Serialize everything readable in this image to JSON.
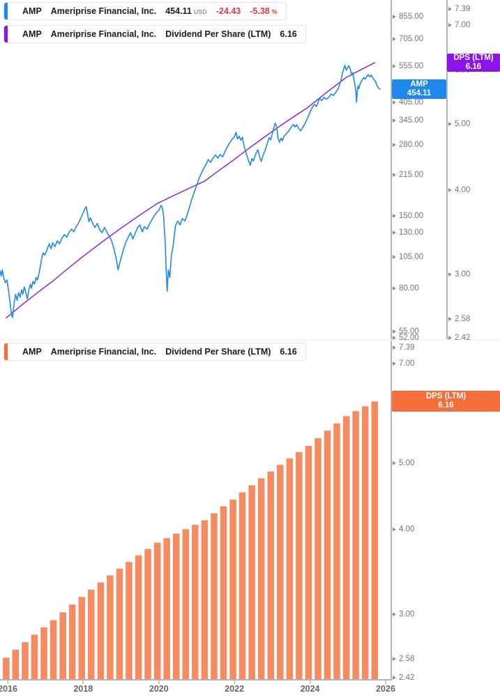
{
  "legends": {
    "price": {
      "ticker": "AMP",
      "name": "Ameriprise Financial, Inc.",
      "price": "454.11",
      "currency": "USD",
      "change": "-24.43",
      "change_pct": "-5.38",
      "pct": "%"
    },
    "dps_overlay": {
      "ticker": "AMP",
      "name": "Ameriprise Financial, Inc.",
      "metric": "Dividend Per Share (LTM)",
      "value": "6.16"
    },
    "dps_bottom": {
      "ticker": "AMP",
      "name": "Ameriprise Financial, Inc.",
      "metric": "Dividend Per Share (LTM)",
      "value": "6.16"
    }
  },
  "badges": {
    "amp": {
      "line1": "AMP",
      "line2": "454.11",
      "color": "#1e88eb"
    },
    "dps_top": {
      "line1": "DPS (LTM)",
      "line2": "6.16",
      "color": "#8c14eb"
    },
    "dps_bottom": {
      "line1": "DPS (LTM)",
      "line2": "6.16",
      "color": "#f46e3c"
    }
  },
  "colors": {
    "price_line": "#1e88eb",
    "dps_line": "#8c14eb",
    "dps_bar": "#f68a60",
    "dps_badge": "#f46e3c",
    "negative_red": "#e23b3e",
    "axis_line": "#b4b4b4",
    "axis_text": "#757575"
  },
  "chart_data": [
    {
      "panel": "top",
      "type": "line",
      "title": "AMP price with Dividend Per Share (LTM) overlay",
      "x_ticks": [
        2016,
        2018,
        2020,
        2022,
        2024,
        2026
      ],
      "price_axis": {
        "scale": "log",
        "ticks": [
          855,
          705,
          555,
          405,
          345,
          280,
          215,
          150,
          130,
          105,
          80,
          55,
          52
        ],
        "last": 454.11
      },
      "dps_axis": {
        "scale": "log",
        "ticks": [
          7.39,
          7,
          6,
          5,
          4,
          3,
          2.58,
          2.42
        ],
        "last": 6.16
      },
      "series": [
        {
          "name": "AMP",
          "label": "454.11 USD",
          "color": "#1e88eb",
          "points": [
            [
              2015.8,
              93
            ],
            [
              2015.83,
              89
            ],
            [
              2015.86,
              94
            ],
            [
              2015.9,
              87
            ],
            [
              2015.94,
              84
            ],
            [
              2015.98,
              86
            ],
            [
              2016.02,
              79
            ],
            [
              2016.06,
              71
            ],
            [
              2016.1,
              64
            ],
            [
              2016.13,
              62
            ],
            [
              2016.17,
              70
            ],
            [
              2016.21,
              76
            ],
            [
              2016.25,
              72
            ],
            [
              2016.29,
              77
            ],
            [
              2016.33,
              74
            ],
            [
              2016.37,
              79
            ],
            [
              2016.4,
              76
            ],
            [
              2016.44,
              81
            ],
            [
              2016.48,
              77
            ],
            [
              2016.52,
              73
            ],
            [
              2016.56,
              79
            ],
            [
              2016.6,
              83
            ],
            [
              2016.63,
              80
            ],
            [
              2016.67,
              85
            ],
            [
              2016.71,
              83
            ],
            [
              2016.75,
              88
            ],
            [
              2016.79,
              86
            ],
            [
              2016.83,
              91
            ],
            [
              2016.87,
              98
            ],
            [
              2016.9,
              104
            ],
            [
              2016.94,
              109
            ],
            [
              2016.98,
              107
            ],
            [
              2017.02,
              110
            ],
            [
              2017.06,
              114
            ],
            [
              2017.1,
              118
            ],
            [
              2017.15,
              113
            ],
            [
              2017.19,
              119
            ],
            [
              2017.25,
              115
            ],
            [
              2017.31,
              121
            ],
            [
              2017.37,
              118
            ],
            [
              2017.44,
              124
            ],
            [
              2017.5,
              128
            ],
            [
              2017.56,
              125
            ],
            [
              2017.62,
              130
            ],
            [
              2017.69,
              134
            ],
            [
              2017.75,
              131
            ],
            [
              2017.81,
              137
            ],
            [
              2017.87,
              141
            ],
            [
              2017.94,
              148
            ],
            [
              2018.0,
              155
            ],
            [
              2018.04,
              160
            ],
            [
              2018.08,
              163
            ],
            [
              2018.12,
              151
            ],
            [
              2018.15,
              143
            ],
            [
              2018.19,
              148
            ],
            [
              2018.25,
              141
            ],
            [
              2018.31,
              136
            ],
            [
              2018.37,
              141
            ],
            [
              2018.44,
              133
            ],
            [
              2018.5,
              130
            ],
            [
              2018.56,
              136
            ],
            [
              2018.62,
              131
            ],
            [
              2018.69,
              126
            ],
            [
              2018.75,
              121
            ],
            [
              2018.81,
              113
            ],
            [
              2018.87,
              104
            ],
            [
              2018.92,
              94
            ],
            [
              2018.96,
              99
            ],
            [
              2019.0,
              104
            ],
            [
              2019.06,
              112
            ],
            [
              2019.12,
              119
            ],
            [
              2019.19,
              125
            ],
            [
              2019.25,
              130
            ],
            [
              2019.31,
              123
            ],
            [
              2019.37,
              129
            ],
            [
              2019.44,
              136
            ],
            [
              2019.5,
              139
            ],
            [
              2019.56,
              131
            ],
            [
              2019.62,
              137
            ],
            [
              2019.69,
              134
            ],
            [
              2019.75,
              140
            ],
            [
              2019.81,
              145
            ],
            [
              2019.87,
              150
            ],
            [
              2019.94,
              155
            ],
            [
              2020.0,
              158
            ],
            [
              2020.06,
              165
            ],
            [
              2020.1,
              160
            ],
            [
              2020.13,
              148
            ],
            [
              2020.17,
              118
            ],
            [
              2020.19,
              96
            ],
            [
              2020.22,
              78
            ],
            [
              2020.25,
              94
            ],
            [
              2020.29,
              88
            ],
            [
              2020.33,
              106
            ],
            [
              2020.37,
              114
            ],
            [
              2020.44,
              138
            ],
            [
              2020.5,
              144
            ],
            [
              2020.56,
              139
            ],
            [
              2020.62,
              147
            ],
            [
              2020.69,
              144
            ],
            [
              2020.75,
              152
            ],
            [
              2020.81,
              162
            ],
            [
              2020.87,
              174
            ],
            [
              2020.94,
              186
            ],
            [
              2021.0,
              196
            ],
            [
              2021.06,
              208
            ],
            [
              2021.12,
              218
            ],
            [
              2021.19,
              228
            ],
            [
              2021.25,
              236
            ],
            [
              2021.31,
              246
            ],
            [
              2021.37,
              240
            ],
            [
              2021.44,
              250
            ],
            [
              2021.5,
              256
            ],
            [
              2021.56,
              249
            ],
            [
              2021.62,
              257
            ],
            [
              2021.69,
              252
            ],
            [
              2021.75,
              264
            ],
            [
              2021.81,
              274
            ],
            [
              2021.87,
              284
            ],
            [
              2021.94,
              294
            ],
            [
              2022.0,
              300
            ],
            [
              2022.04,
              312
            ],
            [
              2022.08,
              294
            ],
            [
              2022.12,
              302
            ],
            [
              2022.17,
              291
            ],
            [
              2022.21,
              299
            ],
            [
              2022.25,
              278
            ],
            [
              2022.31,
              260
            ],
            [
              2022.37,
              244
            ],
            [
              2022.42,
              234
            ],
            [
              2022.46,
              248
            ],
            [
              2022.5,
              243
            ],
            [
              2022.56,
              258
            ],
            [
              2022.62,
              268
            ],
            [
              2022.67,
              251
            ],
            [
              2022.71,
              242
            ],
            [
              2022.75,
              254
            ],
            [
              2022.81,
              266
            ],
            [
              2022.87,
              284
            ],
            [
              2022.92,
              298
            ],
            [
              2022.96,
              292
            ],
            [
              2023.0,
              308
            ],
            [
              2023.04,
              324
            ],
            [
              2023.08,
              338
            ],
            [
              2023.12,
              326
            ],
            [
              2023.15,
              298
            ],
            [
              2023.19,
              286
            ],
            [
              2023.23,
              296
            ],
            [
              2023.27,
              290
            ],
            [
              2023.31,
              301
            ],
            [
              2023.37,
              308
            ],
            [
              2023.44,
              316
            ],
            [
              2023.5,
              326
            ],
            [
              2023.56,
              334
            ],
            [
              2023.6,
              327
            ],
            [
              2023.65,
              333
            ],
            [
              2023.69,
              324
            ],
            [
              2023.75,
              316
            ],
            [
              2023.81,
              326
            ],
            [
              2023.87,
              338
            ],
            [
              2023.94,
              354
            ],
            [
              2024.0,
              372
            ],
            [
              2024.06,
              388
            ],
            [
              2024.12,
              398
            ],
            [
              2024.17,
              391
            ],
            [
              2024.21,
              404
            ],
            [
              2024.25,
              420
            ],
            [
              2024.31,
              411
            ],
            [
              2024.37,
              423
            ],
            [
              2024.44,
              416
            ],
            [
              2024.5,
              424
            ],
            [
              2024.56,
              436
            ],
            [
              2024.62,
              430
            ],
            [
              2024.69,
              444
            ],
            [
              2024.75,
              458
            ],
            [
              2024.81,
              486
            ],
            [
              2024.85,
              516
            ],
            [
              2024.88,
              536
            ],
            [
              2024.92,
              560
            ],
            [
              2024.94,
              546
            ],
            [
              2024.96,
              536
            ],
            [
              2025.0,
              550
            ],
            [
              2025.02,
              558
            ],
            [
              2025.06,
              543
            ],
            [
              2025.08,
              528
            ],
            [
              2025.1,
              514
            ],
            [
              2025.13,
              526
            ],
            [
              2025.15,
              506
            ],
            [
              2025.17,
              488
            ],
            [
              2025.19,
              468
            ],
            [
              2025.21,
              446
            ],
            [
              2025.23,
              405
            ],
            [
              2025.25,
              450
            ],
            [
              2025.27,
              468
            ],
            [
              2025.29,
              456
            ],
            [
              2025.33,
              478
            ],
            [
              2025.37,
              490
            ],
            [
              2025.42,
              503
            ],
            [
              2025.46,
              496
            ],
            [
              2025.5,
              508
            ],
            [
              2025.54,
              516
            ],
            [
              2025.58,
              506
            ],
            [
              2025.62,
              514
            ],
            [
              2025.65,
              504
            ],
            [
              2025.69,
              495
            ],
            [
              2025.73,
              487
            ],
            [
              2025.77,
              469
            ],
            [
              2025.81,
              459
            ],
            [
              2025.85,
              454.11
            ]
          ]
        },
        {
          "name": "Dividend Per Share (LTM)",
          "label": "6.16",
          "color": "#8c14eb",
          "points_from": "dps_values"
        }
      ]
    },
    {
      "panel": "bottom",
      "type": "bar",
      "name": "Dividend Per Share (LTM)",
      "color": "#f68a60",
      "start_year": 2015.96,
      "step_years": 0.25,
      "values": [
        2.59,
        2.66,
        2.73,
        2.8,
        2.87,
        2.94,
        3.02,
        3.1,
        3.18,
        3.26,
        3.34,
        3.42,
        3.5,
        3.58,
        3.66,
        3.74,
        3.82,
        3.88,
        3.94,
        4.0,
        4.06,
        4.12,
        4.22,
        4.32,
        4.42,
        4.53,
        4.64,
        4.75,
        4.86,
        4.97,
        5.08,
        5.19,
        5.3,
        5.44,
        5.58,
        5.72,
        5.86,
        5.96,
        6.06,
        6.16
      ],
      "y_axis": {
        "scale": "log",
        "ticks": [
          7.39,
          7,
          6,
          5,
          4,
          3,
          2.58,
          2.42
        ],
        "last": 6.16
      },
      "x_ticks": [
        2016,
        2018,
        2020,
        2022,
        2024,
        2026
      ]
    }
  ]
}
